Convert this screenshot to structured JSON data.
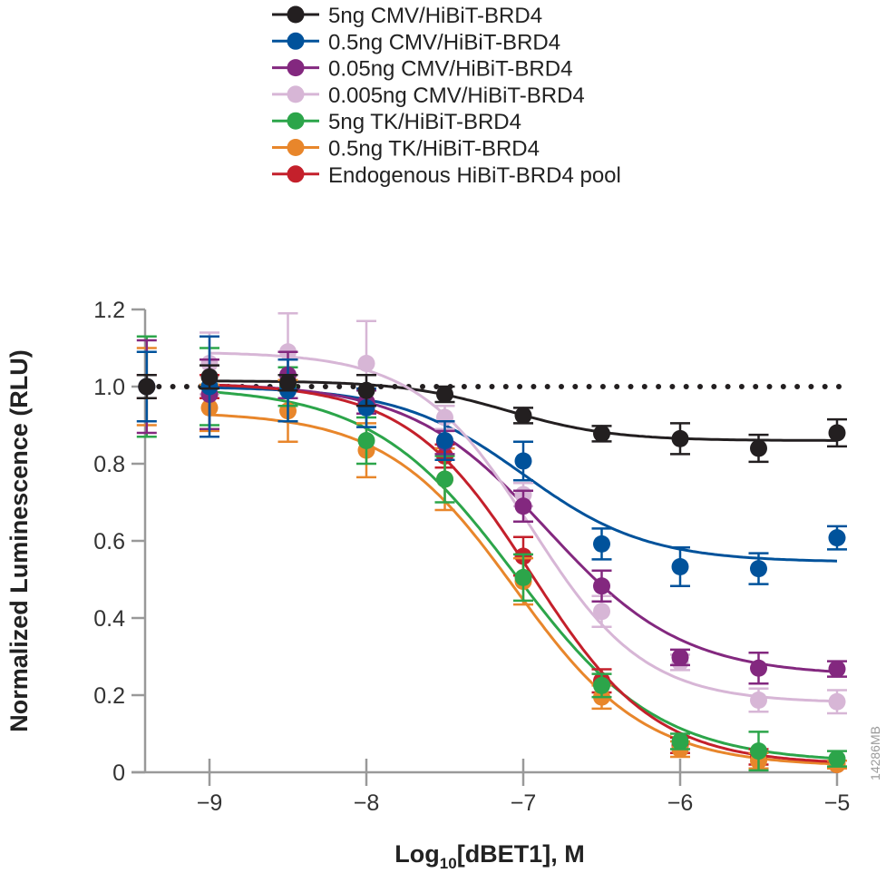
{
  "chart_data": {
    "type": "scatter",
    "title": "",
    "xlabel": {
      "main": "Log",
      "sub": "10",
      "rest": "[dBET1], M"
    },
    "ylabel": "Normalized Luminescence (RLU)",
    "xlim": [
      -9.5,
      -5
    ],
    "ylim": [
      0,
      1.2
    ],
    "xticks": [
      -9,
      -8,
      -7,
      -6,
      -5
    ],
    "xtick_labels": [
      "−9",
      "−8",
      "−7",
      "−6",
      "−5"
    ],
    "yticks": [
      0,
      0.2,
      0.4,
      0.6,
      0.8,
      1.0,
      1.2
    ],
    "ytick_labels": [
      "0",
      "0.2",
      "0.4",
      "0.6",
      "0.8",
      "1.0",
      "1.2"
    ],
    "reference_line": {
      "y": 1.0,
      "style": "dotted"
    },
    "legend_position": "top",
    "grid": false,
    "x": [
      -9.4,
      -9,
      -8.5,
      -8,
      -7.5,
      -7,
      -6.5,
      -6,
      -5.5,
      -5
    ],
    "series": [
      {
        "name": "5ng CMV/HiBiT-BRD4",
        "color": "#231f20",
        "values": [
          1.0,
          1.025,
          1.01,
          0.99,
          0.98,
          0.925,
          0.878,
          0.865,
          0.84,
          0.88
        ],
        "errors": [
          0.03,
          0.03,
          0.02,
          0.04,
          0.02,
          0.02,
          0.02,
          0.04,
          0.035,
          0.035
        ],
        "fit": {
          "top": 1.015,
          "bottom": 0.86,
          "logEC50": -7.1,
          "hill": 1.3
        }
      },
      {
        "name": "0.5ng CMV/HiBiT-BRD4",
        "color": "#00529b",
        "values": [
          1.0,
          1.0,
          0.99,
          0.945,
          0.86,
          0.807,
          0.592,
          0.533,
          0.528,
          0.608
        ],
        "errors": [
          0.09,
          0.13,
          0.08,
          0.05,
          0.05,
          0.05,
          0.04,
          0.05,
          0.04,
          0.03
        ],
        "fit": {
          "top": 1.0,
          "bottom": 0.545,
          "logEC50": -7.0,
          "hill": 1.1
        }
      },
      {
        "name": "0.05ng CMV/HiBiT-BRD4",
        "color": "#83287f",
        "values": [
          1.0,
          0.98,
          1.03,
          0.96,
          0.855,
          0.69,
          0.483,
          0.298,
          0.27,
          0.268
        ],
        "errors": [
          0.12,
          0.09,
          0.06,
          0.03,
          0.03,
          0.04,
          0.04,
          0.02,
          0.04,
          0.02
        ],
        "fit": {
          "top": 1.01,
          "bottom": 0.25,
          "logEC50": -6.85,
          "hill": 1.0
        }
      },
      {
        "name": "0.005ng CMV/HiBiT-BRD4",
        "color": "#d7b6d6",
        "values": [
          1.0,
          1.06,
          1.09,
          1.06,
          0.92,
          0.72,
          0.417,
          0.285,
          0.187,
          0.183
        ],
        "errors": [
          0.09,
          0.08,
          0.1,
          0.11,
          0.03,
          0.03,
          0.04,
          0.02,
          0.03,
          0.03
        ],
        "fit": {
          "top": 1.09,
          "bottom": 0.18,
          "logEC50": -6.95,
          "hill": 1.2
        }
      },
      {
        "name": "5ng TK/HiBiT-BRD4",
        "color": "#2ca54a",
        "values": [
          1.0,
          1.0,
          1.0,
          0.86,
          0.76,
          0.505,
          0.225,
          0.08,
          0.055,
          0.035
        ],
        "errors": [
          0.13,
          0.1,
          0.05,
          0.06,
          0.06,
          0.06,
          0.03,
          0.02,
          0.05,
          0.02
        ],
        "fit": {
          "top": 1.0,
          "bottom": 0.025,
          "logEC50": -7.05,
          "hill": 0.95
        }
      },
      {
        "name": "0.5ng TK/HiBiT-BRD4",
        "color": "#e8862b",
        "values": [
          1.0,
          0.945,
          0.937,
          0.835,
          0.76,
          0.495,
          0.195,
          0.06,
          0.03,
          0.02
        ],
        "errors": [
          0.1,
          0.06,
          0.08,
          0.07,
          0.08,
          0.06,
          0.03,
          0.02,
          0.02,
          0.01
        ],
        "fit": {
          "top": 0.935,
          "bottom": 0.015,
          "logEC50": -7.05,
          "hill": 1.05
        }
      },
      {
        "name": "Endogenous HiBiT-BRD4 pool",
        "color": "#c4202b",
        "values": [
          1.0,
          1.0,
          1.0,
          0.96,
          0.82,
          0.56,
          0.237,
          0.07,
          0.04,
          0.02
        ],
        "errors": [
          0.03,
          0.03,
          0.03,
          0.03,
          0.03,
          0.05,
          0.03,
          0.02,
          0.02,
          0.01
        ],
        "fit": {
          "top": 1.01,
          "bottom": 0.02,
          "logEC50": -6.95,
          "hill": 1.1
        }
      }
    ]
  },
  "watermark": "14286MB"
}
